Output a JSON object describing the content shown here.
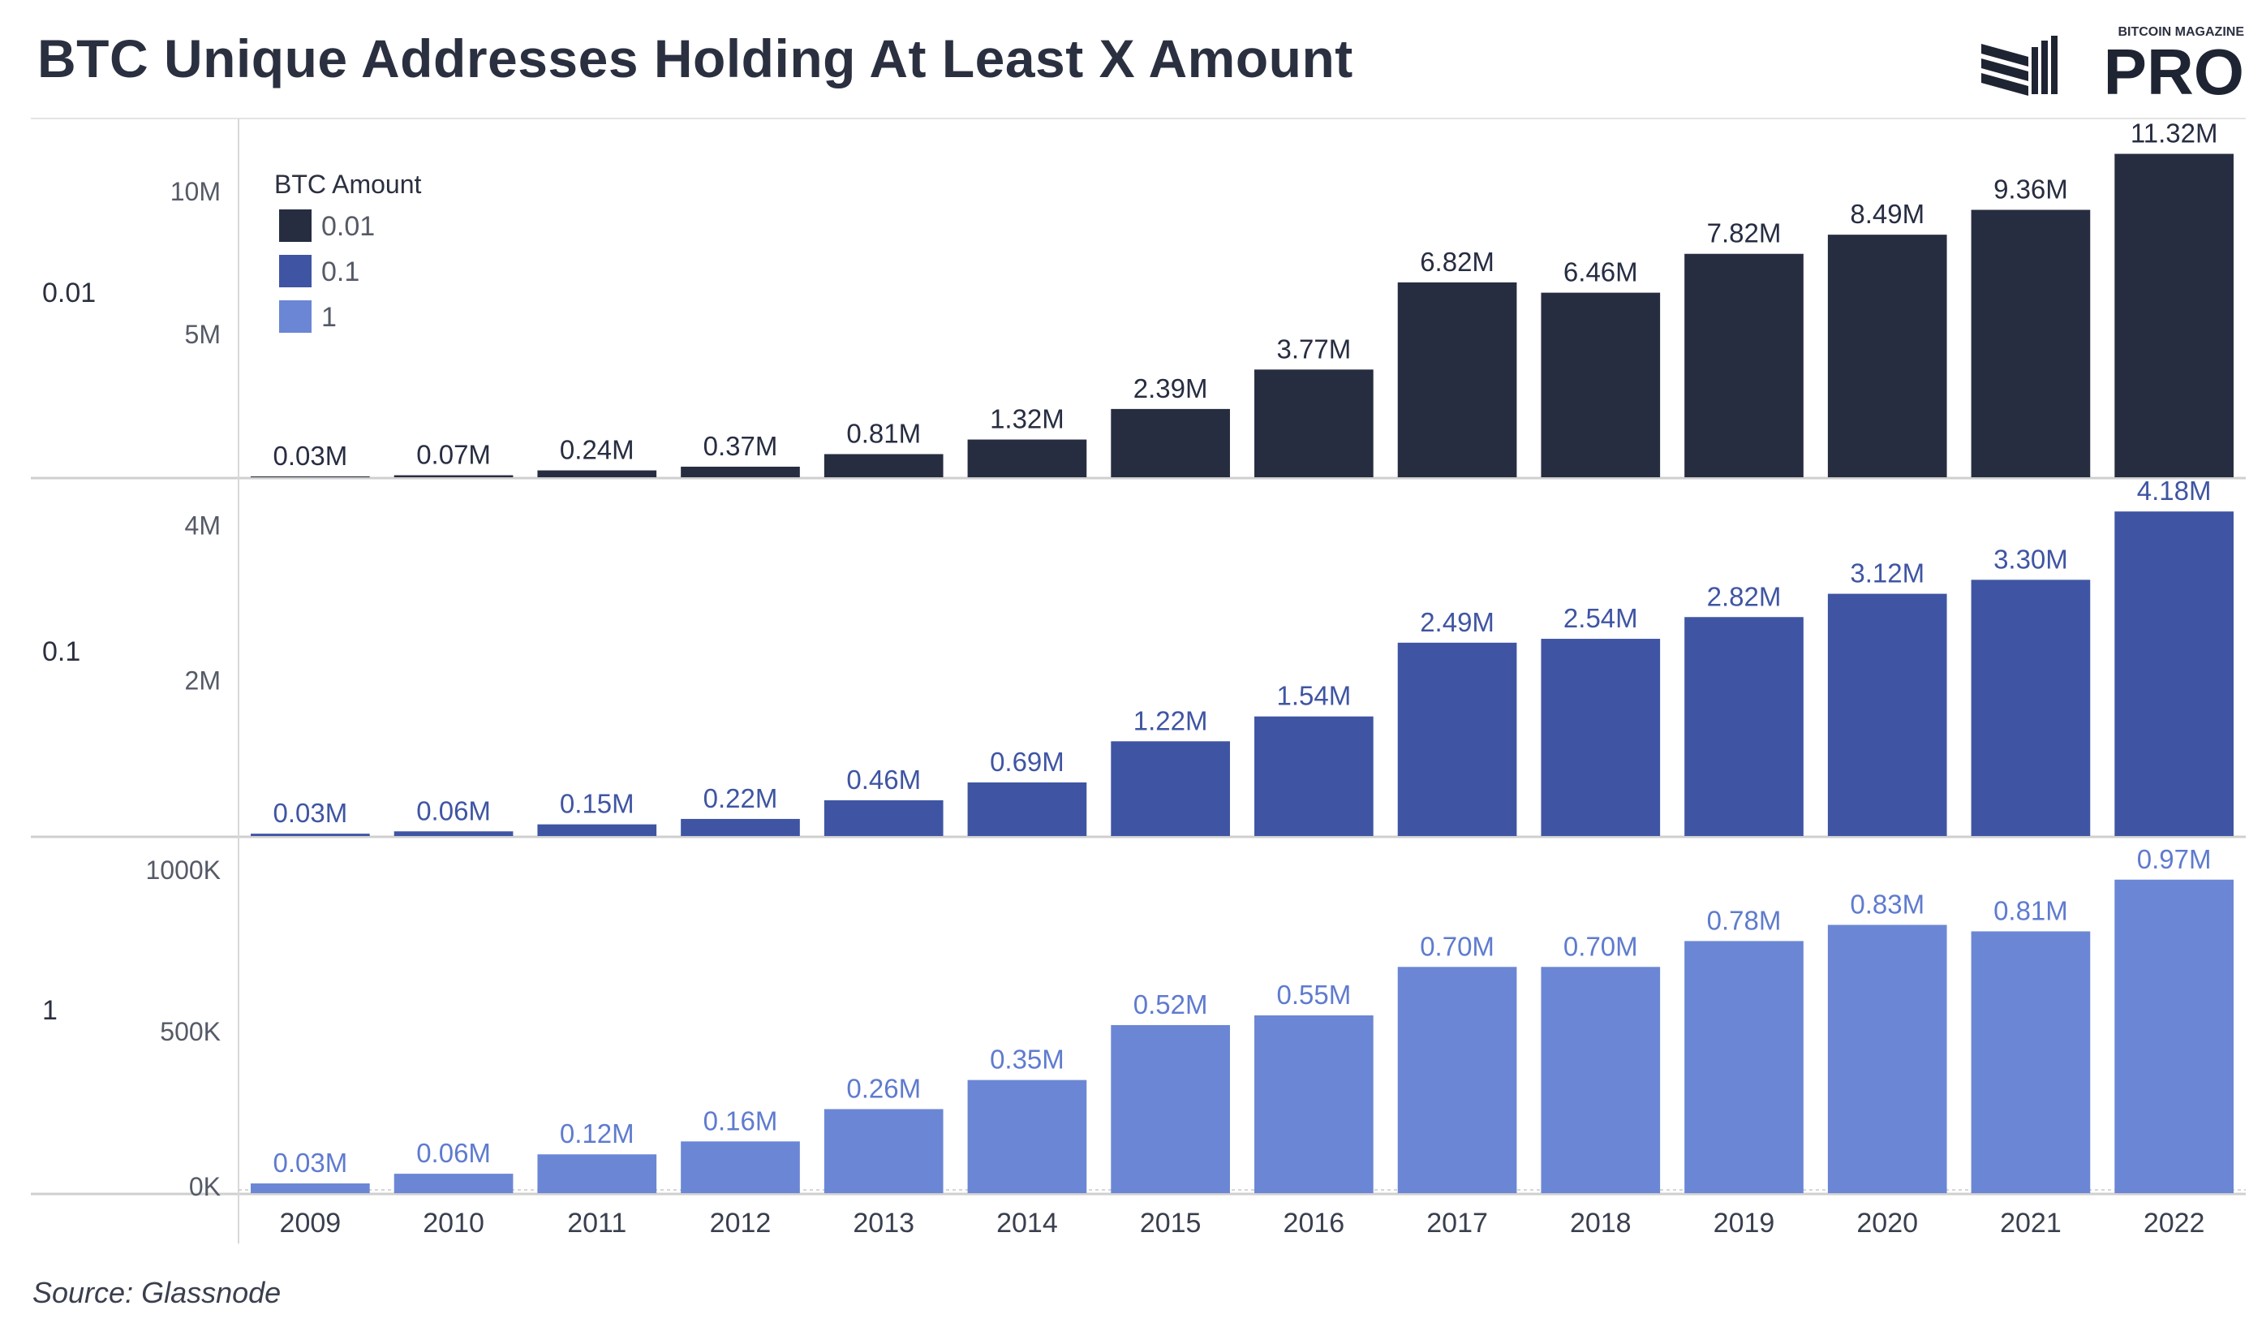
{
  "title": "BTC Unique Addresses Holding At Least X Amount",
  "logo": {
    "small_text": "BITCOIN MAGAZINE",
    "big_text": "PRO"
  },
  "source": "Source: Glassnode",
  "colors": {
    "series_0": "#272d41",
    "series_1": "#3f55a3",
    "series_2": "#6b86d4",
    "label_0": "#272d41",
    "label_1": "#3f55a3",
    "label_2": "#5f7bcf"
  },
  "chart_data": {
    "type": "bar",
    "categories": [
      "2009",
      "2010",
      "2011",
      "2012",
      "2013",
      "2014",
      "2015",
      "2016",
      "2017",
      "2018",
      "2019",
      "2020",
      "2021",
      "2022"
    ],
    "legend": {
      "title": "BTC Amount",
      "entries": [
        "0.01",
        "0.1",
        "1"
      ],
      "placement": "top-left"
    },
    "panels": [
      {
        "row_label": "0.01",
        "ylim": [
          0,
          12500000
        ],
        "ticks": [
          {
            "value": 5000000,
            "label": "5M"
          },
          {
            "value": 10000000,
            "label": "10M"
          }
        ],
        "values": [
          30000,
          70000,
          240000,
          370000,
          810000,
          1320000,
          2390000,
          3770000,
          6820000,
          6460000,
          7820000,
          8490000,
          9360000,
          11320000
        ],
        "labels": [
          "0.03M",
          "0.07M",
          "0.24M",
          "0.37M",
          "0.81M",
          "1.32M",
          "2.39M",
          "3.77M",
          "6.82M",
          "6.46M",
          "7.82M",
          "8.49M",
          "9.36M",
          "11.32M"
        ]
      },
      {
        "row_label": "0.1",
        "ylim": [
          0,
          4600000
        ],
        "ticks": [
          {
            "value": 2000000,
            "label": "2M"
          },
          {
            "value": 4000000,
            "label": "4M"
          }
        ],
        "values": [
          30000,
          60000,
          150000,
          220000,
          460000,
          690000,
          1220000,
          1540000,
          2490000,
          2540000,
          2820000,
          3120000,
          3300000,
          4180000
        ],
        "labels": [
          "0.03M",
          "0.06M",
          "0.15M",
          "0.22M",
          "0.46M",
          "0.69M",
          "1.22M",
          "1.54M",
          "2.49M",
          "2.54M",
          "2.82M",
          "3.12M",
          "3.30M",
          "4.18M"
        ]
      },
      {
        "row_label": "1",
        "ylim": [
          0,
          1100000
        ],
        "ticks": [
          {
            "value": 0,
            "label": "0K"
          },
          {
            "value": 500000,
            "label": "500K"
          },
          {
            "value": 1000000,
            "label": "1000K"
          }
        ],
        "values": [
          30000,
          60000,
          120000,
          160000,
          260000,
          350000,
          520000,
          550000,
          700000,
          700000,
          780000,
          830000,
          810000,
          970000
        ],
        "labels": [
          "0.03M",
          "0.06M",
          "0.12M",
          "0.16M",
          "0.26M",
          "0.35M",
          "0.52M",
          "0.55M",
          "0.70M",
          "0.70M",
          "0.78M",
          "0.83M",
          "0.81M",
          "0.97M"
        ]
      }
    ]
  }
}
